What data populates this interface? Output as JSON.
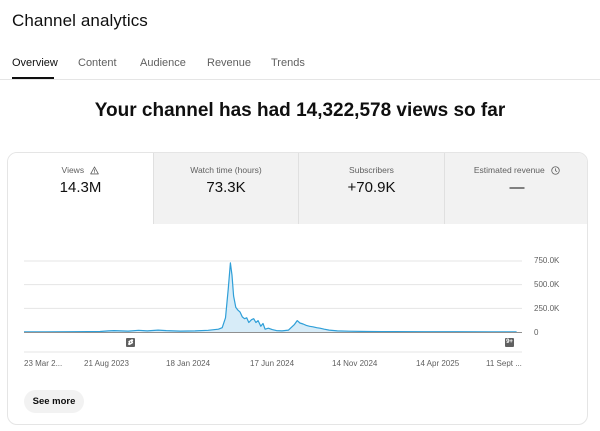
{
  "page": {
    "title": "Channel analytics"
  },
  "tabs": [
    {
      "label": "Overview",
      "active": true
    },
    {
      "label": "Content",
      "active": false
    },
    {
      "label": "Audience",
      "active": false
    },
    {
      "label": "Revenue",
      "active": false
    },
    {
      "label": "Trends",
      "active": false
    }
  ],
  "headline": "Your channel has had 14,322,578 views so far",
  "metrics": [
    {
      "label": "Views",
      "value": "14.3M",
      "icon": "warning-icon",
      "active": true
    },
    {
      "label": "Watch time (hours)",
      "value": "73.3K",
      "active": false
    },
    {
      "label": "Subscribers",
      "value": "+70.9K",
      "active": false
    },
    {
      "label": "Estimated revenue",
      "value": "—",
      "icon": "clock-icon",
      "active": false
    }
  ],
  "see_more_label": "See more",
  "markers": [
    {
      "icon": "shorts-icon",
      "date": "21 Aug 2023"
    },
    {
      "icon": "badge-9plus-icon",
      "label": "9+",
      "date": "11 Sept 2025"
    }
  ],
  "colors": {
    "series": "#2f9fd8",
    "fill": "#d7ecf8",
    "grid": "#e5e5e5",
    "axis": "#909090"
  },
  "chart_data": {
    "type": "area",
    "title": "",
    "ylabel": "",
    "xlabel": "",
    "ylim": [
      0,
      750000
    ],
    "yticks": [
      "750.0K",
      "500.0K",
      "250.0K",
      "0"
    ],
    "ytick_values": [
      750000,
      500000,
      250000,
      0
    ],
    "xticks": [
      "23 Mar 2...",
      "21 Aug 2023",
      "18 Jan 2024",
      "17 Jun 2024",
      "14 Nov 2024",
      "14 Apr 2025",
      "11 Sept ..."
    ],
    "xtick_dates": [
      "2023-03-23",
      "2023-08-21",
      "2024-01-18",
      "2024-06-17",
      "2024-11-14",
      "2025-04-14",
      "2025-09-11"
    ],
    "series": [
      {
        "points": [
          [
            "2023-03-23",
            2000
          ],
          [
            "2023-05-01",
            2500
          ],
          [
            "2023-06-15",
            3000
          ],
          [
            "2023-07-20",
            4000
          ],
          [
            "2023-08-10",
            5000
          ],
          [
            "2023-08-25",
            12000
          ],
          [
            "2023-09-05",
            15000
          ],
          [
            "2023-10-01",
            10000
          ],
          [
            "2023-10-20",
            18000
          ],
          [
            "2023-11-05",
            12000
          ],
          [
            "2023-11-25",
            20000
          ],
          [
            "2023-12-10",
            15000
          ],
          [
            "2024-01-05",
            10000
          ],
          [
            "2024-02-01",
            12000
          ],
          [
            "2024-02-25",
            18000
          ],
          [
            "2024-03-15",
            30000
          ],
          [
            "2024-03-22",
            45000
          ],
          [
            "2024-03-28",
            150000
          ],
          [
            "2024-04-02",
            450000
          ],
          [
            "2024-04-06",
            730000
          ],
          [
            "2024-04-09",
            600000
          ],
          [
            "2024-04-12",
            380000
          ],
          [
            "2024-04-16",
            260000
          ],
          [
            "2024-04-20",
            230000
          ],
          [
            "2024-04-24",
            210000
          ],
          [
            "2024-04-28",
            160000
          ],
          [
            "2024-05-02",
            140000
          ],
          [
            "2024-05-06",
            150000
          ],
          [
            "2024-05-10",
            100000
          ],
          [
            "2024-05-15",
            130000
          ],
          [
            "2024-05-19",
            140000
          ],
          [
            "2024-05-23",
            100000
          ],
          [
            "2024-05-27",
            120000
          ],
          [
            "2024-06-01",
            60000
          ],
          [
            "2024-06-05",
            90000
          ],
          [
            "2024-06-09",
            30000
          ],
          [
            "2024-06-15",
            40000
          ],
          [
            "2024-06-22",
            25000
          ],
          [
            "2024-06-30",
            15000
          ],
          [
            "2024-07-10",
            12000
          ],
          [
            "2024-07-22",
            20000
          ],
          [
            "2024-08-02",
            80000
          ],
          [
            "2024-08-07",
            120000
          ],
          [
            "2024-08-12",
            95000
          ],
          [
            "2024-08-18",
            85000
          ],
          [
            "2024-08-24",
            70000
          ],
          [
            "2024-08-30",
            60000
          ],
          [
            "2024-09-05",
            55000
          ],
          [
            "2024-09-12",
            45000
          ],
          [
            "2024-09-18",
            40000
          ],
          [
            "2024-09-26",
            30000
          ],
          [
            "2024-10-05",
            20000
          ],
          [
            "2024-10-20",
            12000
          ],
          [
            "2024-11-10",
            8000
          ],
          [
            "2024-12-15",
            5000
          ],
          [
            "2025-02-01",
            4000
          ],
          [
            "2025-04-01",
            3000
          ],
          [
            "2025-06-01",
            3000
          ],
          [
            "2025-08-01",
            2500
          ],
          [
            "2025-09-15",
            2000
          ]
        ]
      }
    ]
  }
}
